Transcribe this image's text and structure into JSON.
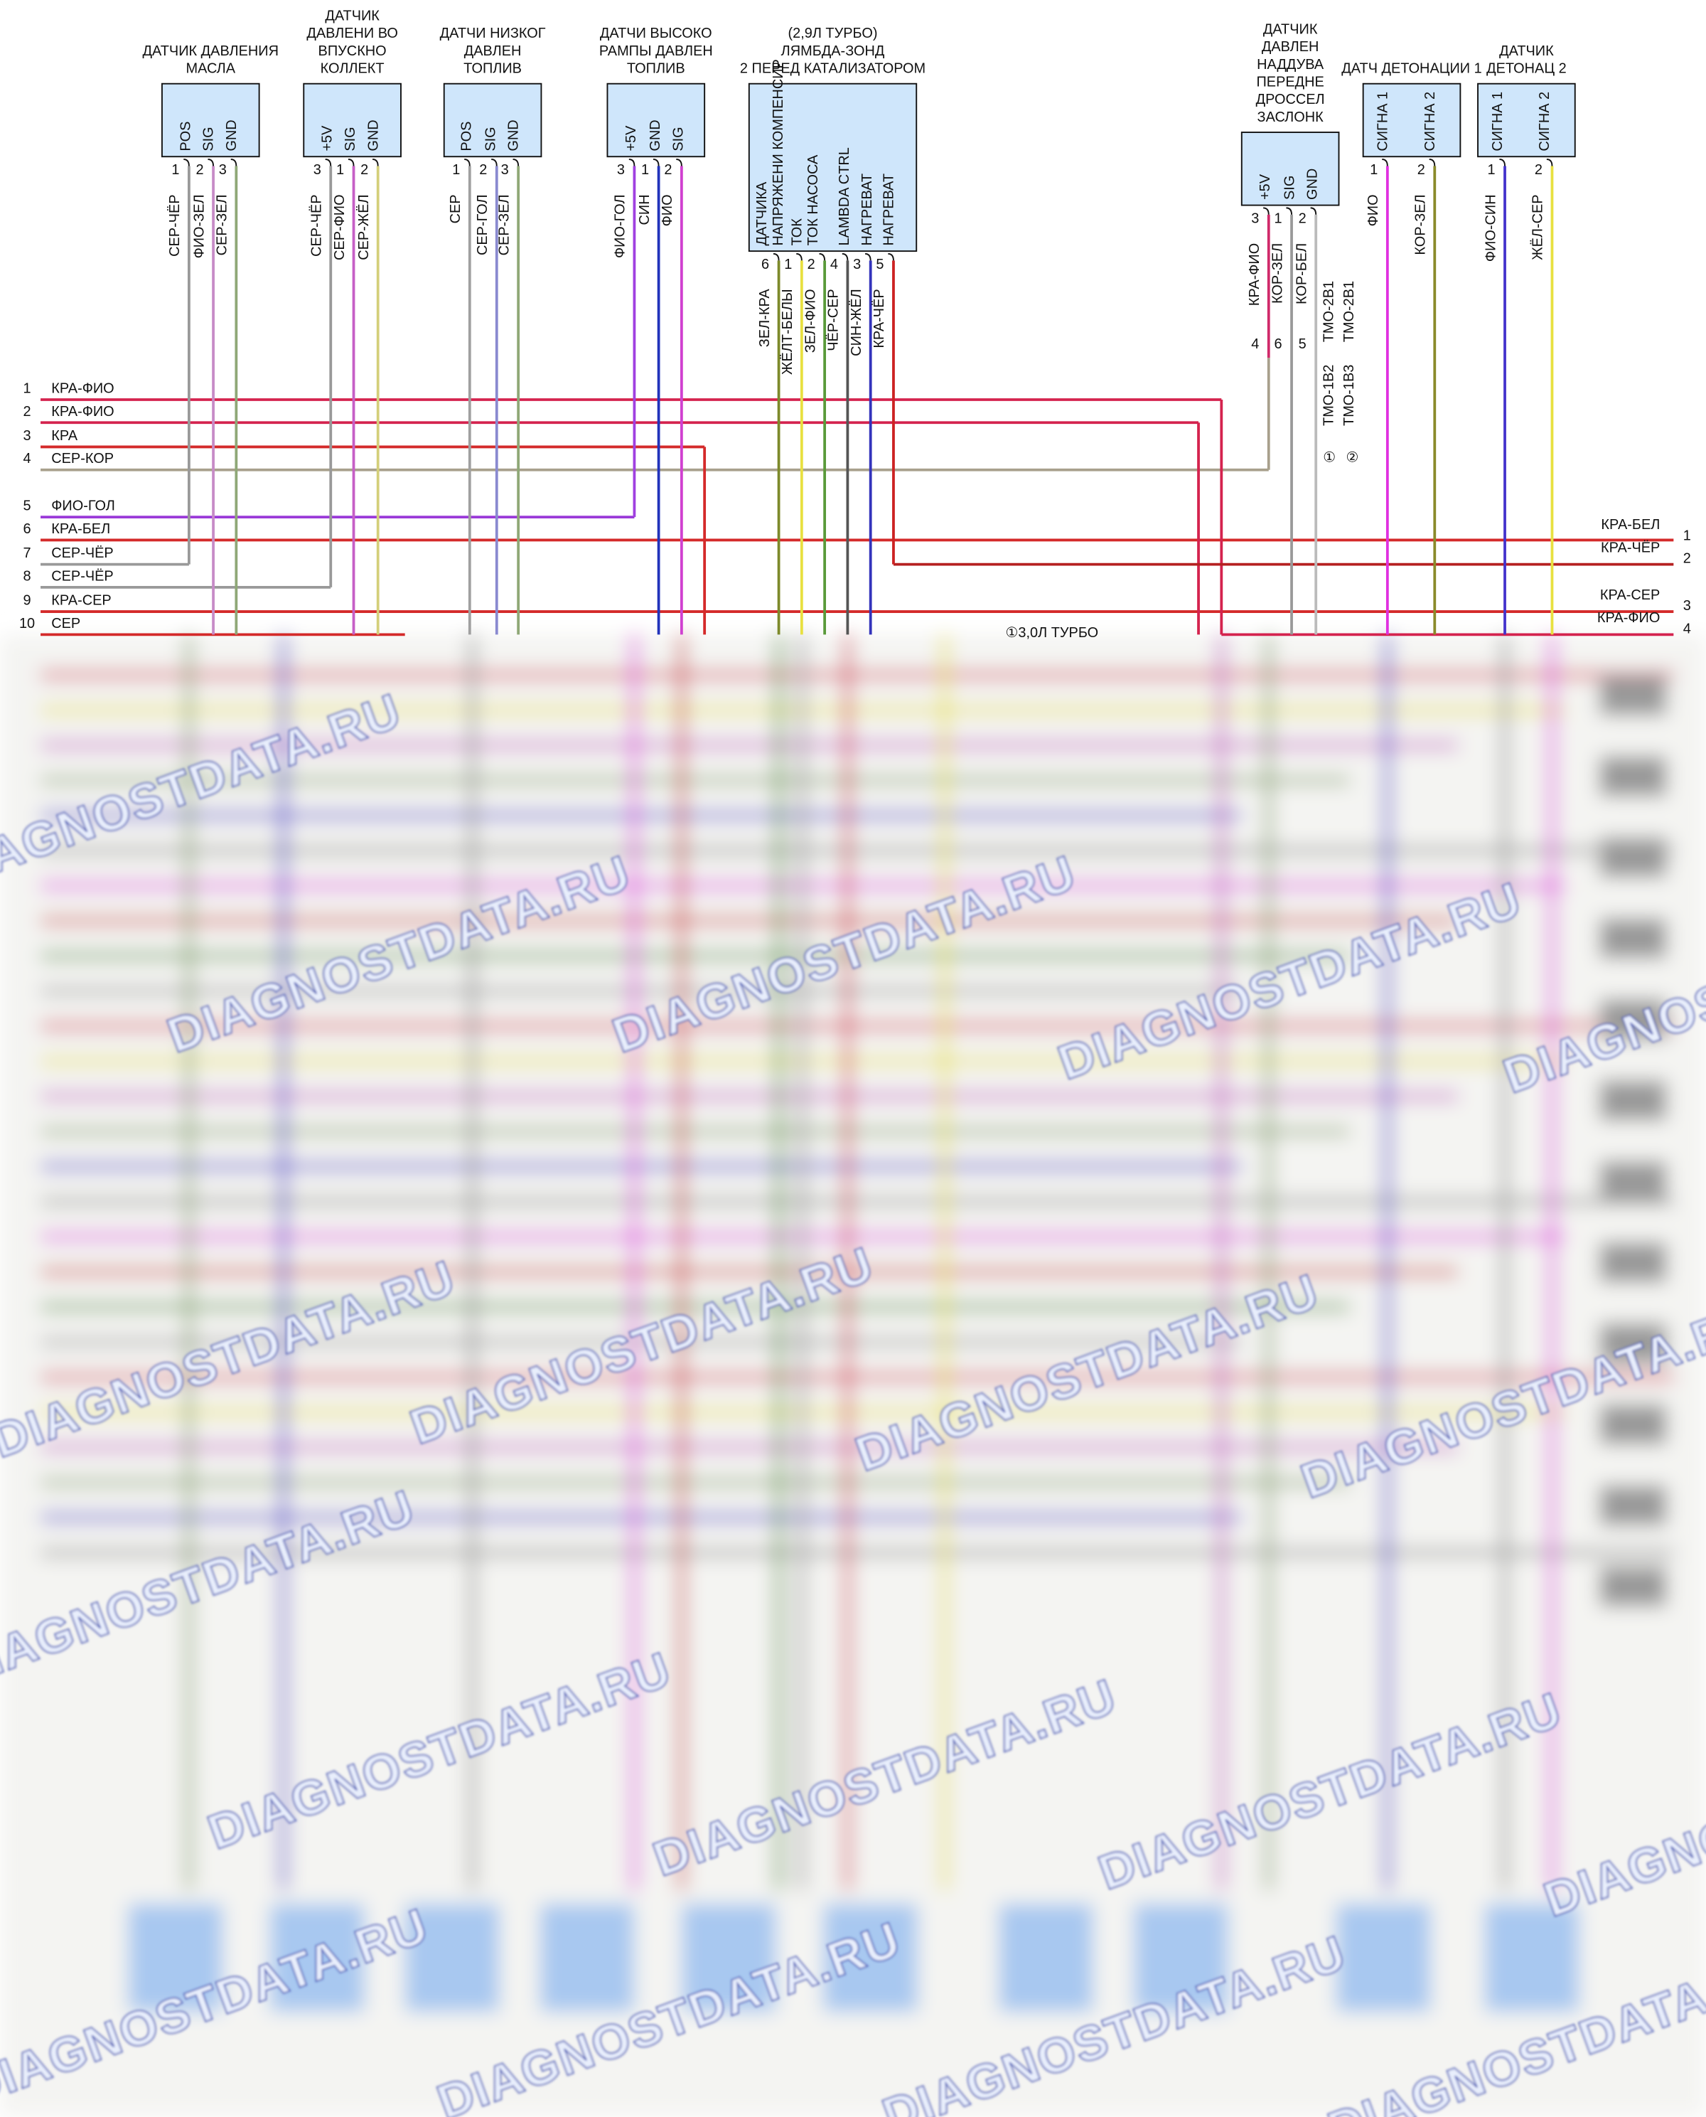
{
  "components": [
    {
      "title": [
        "ДАТЧИК ДАВЛЕНИЯ",
        "МАСЛА"
      ],
      "pins": [
        {
          "name": [
            "POS"
          ],
          "number": 1,
          "wire": "СЕР-ЧЁР"
        },
        {
          "name": [
            "SIG"
          ],
          "number": 2,
          "wire": "ФИО-ЗЕЛ"
        },
        {
          "name": [
            "GND"
          ],
          "number": 3,
          "wire": "СЕР-ЗЕЛ"
        }
      ]
    },
    {
      "title": [
        "ДАТЧИК",
        "ДАВЛЕНИ ВО",
        "ВПУСКНО",
        "КОЛЛЕКТ"
      ],
      "pins": [
        {
          "name": [
            "+5V"
          ],
          "number": 3,
          "wire": "СЕР-ЧЁР"
        },
        {
          "name": [
            "SIG"
          ],
          "number": 1,
          "wire": "СЕР-ФИО"
        },
        {
          "name": [
            "GND"
          ],
          "number": 2,
          "wire": "СЕР-ЖЁЛ"
        }
      ]
    },
    {
      "title": [
        "ДАТЧИ НИЗКОГ",
        "ДАВЛЕН",
        "ТОПЛИВ"
      ],
      "pins": [
        {
          "name": [
            "POS"
          ],
          "number": 1,
          "wire": "СЕР"
        },
        {
          "name": [
            "SIG"
          ],
          "number": 2,
          "wire": "СЕР-ГОЛ"
        },
        {
          "name": [
            "GND"
          ],
          "number": 3,
          "wire": "СЕР-ЗЕЛ"
        }
      ]
    },
    {
      "title": [
        "ДАТЧИ ВЫСОКО",
        "РАМПЫ ДАВЛЕН",
        "ТОПЛИВ"
      ],
      "pins": [
        {
          "name": [
            "+5V"
          ],
          "number": 3,
          "wire": "ФИО-ГОЛ"
        },
        {
          "name": [
            "GND"
          ],
          "number": 1,
          "wire": "СИН"
        },
        {
          "name": [
            "SIG"
          ],
          "number": 2,
          "wire": "ФИО"
        }
      ]
    },
    {
      "title": [
        "(2,9Л ТУРБО)",
        "ЛЯМБДА-ЗОНД",
        "2 ПЕРЕД КАТАЛИЗАТОРОМ"
      ],
      "pins": [
        {
          "name": [
            "ДАТЧИКА",
            "НАПРЯЖЕНИ КОМПЕНСИР"
          ],
          "number": 6,
          "wire": "ЗЕЛ-КРА"
        },
        {
          "name": [
            "ТОК",
            "ТОК НАСОСА"
          ],
          "number": 1,
          "wire": "ЖЁЛТ-БЕЛЫ"
        },
        {
          "name": [],
          "number": 2,
          "wire": "ЗЕЛ-ФИО"
        },
        {
          "name": [
            "LAMBDA CTRL"
          ],
          "number": 4,
          "wire": "ЧЁР-СЕР"
        },
        {
          "name": [
            "НАГРЕВАТ"
          ],
          "number": 3,
          "wire": "СИН-ЖЁЛ"
        },
        {
          "name": [
            "НАГРЕВАТ"
          ],
          "number": 5,
          "wire": "КРА-ЧЁР"
        }
      ]
    },
    {
      "title": [
        "ДАТЧИК",
        "ДАВЛЕН",
        "НАДДУВА",
        "ПЕРЕДНЕ",
        "ДРОССЕЛ",
        "ЗАСЛОНК"
      ],
      "pins": [
        {
          "name": [
            "+5V"
          ],
          "number": 3,
          "wire": "КРА-ФИО"
        },
        {
          "name": [
            "SIG"
          ],
          "number": 1,
          "wire": "КОР-ЗЕЛ"
        },
        {
          "name": [
            "GND"
          ],
          "number": 2,
          "wire": "КОР-БЕЛ"
        }
      ]
    },
    {
      "title": [
        "ДАТЧ ДЕТОНАЦИИ 1"
      ],
      "pins": [
        {
          "name": [
            "СИГНА 1"
          ],
          "number": 1,
          "wire": "ФИО"
        },
        {
          "name": [
            "СИГНА 2"
          ],
          "number": 2,
          "wire": "КОР-ЗЕЛ"
        }
      ]
    },
    {
      "title": [
        "ДАТЧИК",
        "ДЕТОНАЦ 2"
      ],
      "pins": [
        {
          "name": [
            "СИГНА 1"
          ],
          "number": 1,
          "wire": "ФИО-СИН"
        },
        {
          "name": [
            "СИГНА 2"
          ],
          "number": 2,
          "wire": "ЖЁЛ-СЕР"
        }
      ]
    }
  ],
  "left_rows": [
    {
      "number": 1,
      "wire": "КРА-ФИО"
    },
    {
      "number": 2,
      "wire": "КРА-ФИО"
    },
    {
      "number": 3,
      "wire": "КРА"
    },
    {
      "number": 4,
      "wire": "СЕР-КОР"
    },
    {
      "number": 5,
      "wire": "ФИО-ГОЛ"
    },
    {
      "number": 6,
      "wire": "КРА-БЕЛ"
    },
    {
      "number": 7,
      "wire": "СЕР-ЧЁР"
    },
    {
      "number": 8,
      "wire": "СЕР-ЧЁР"
    },
    {
      "number": 9,
      "wire": "КРА-СЕР"
    },
    {
      "number": 10,
      "wire": "СЕР"
    }
  ],
  "right_rows": [
    {
      "number": 1,
      "wire": "КРА-БЕЛ"
    },
    {
      "number": 2,
      "wire": "КРА-ЧЁР"
    },
    {
      "number": 3,
      "wire": "КРА-СЕР"
    },
    {
      "number": 4,
      "wire": "КРА-ФИО"
    }
  ],
  "boost_connector": {
    "numbers": [
      4,
      6,
      5
    ],
    "codes": [
      "ТМО-2В1",
      "ТМО-2В1",
      "ТМО-1В2",
      "ТМО-1В3"
    ],
    "markers": [
      "①",
      "②"
    ]
  },
  "note": "①3,0Л ТУРБО",
  "watermark": "DIAGNOSTDATA.RU"
}
